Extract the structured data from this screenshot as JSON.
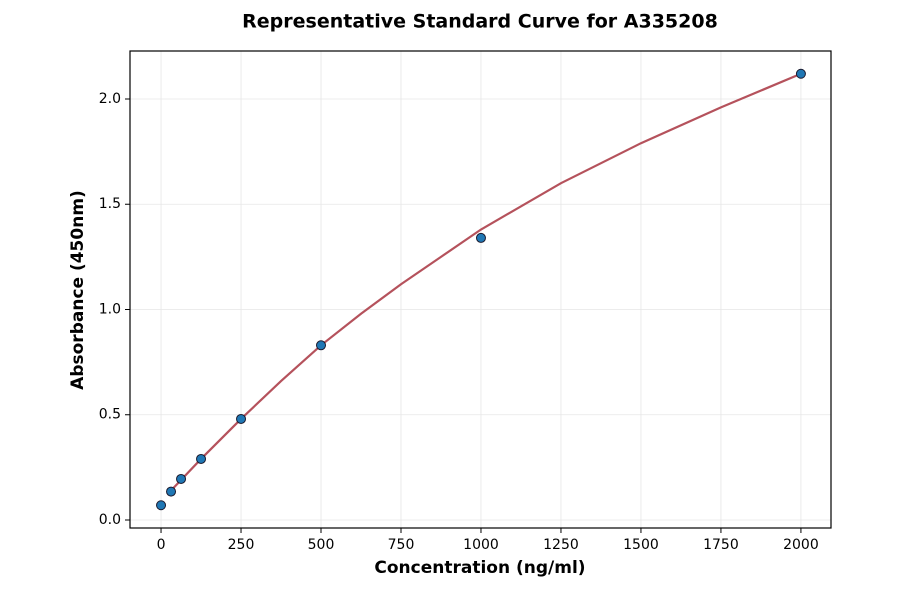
{
  "chart_data": {
    "type": "scatter",
    "title": "Representative Standard Curve for A335208",
    "x_label": "Concentration (ng/ml)",
    "y_label": "Absorbance (450nm)",
    "series": [
      {
        "type": "line",
        "color": "#b5525c",
        "x": [
          31.25,
          62.5,
          125,
          250,
          375,
          500,
          625,
          750,
          875,
          1000,
          1250,
          1500,
          1750,
          2000
        ],
        "values": [
          0.14,
          0.19,
          0.29,
          0.48,
          0.66,
          0.83,
          0.98,
          1.12,
          1.25,
          1.38,
          1.6,
          1.79,
          1.96,
          2.12
        ]
      },
      {
        "type": "scatter",
        "color": "#1f77b4",
        "x": [
          0,
          31.25,
          62.5,
          125,
          250,
          500,
          1000,
          2000
        ],
        "values": [
          0.07,
          0.135,
          0.195,
          0.29,
          0.48,
          0.83,
          1.34,
          2.12
        ]
      }
    ],
    "xlim": [
      -97,
      2094
    ],
    "ylim": [
      -0.038,
      2.228
    ],
    "xticks": [
      0,
      250,
      500,
      750,
      1000,
      1250,
      1500,
      1750,
      2000
    ],
    "yticks": [
      {
        "value": 0,
        "label": "0.0"
      },
      0.5,
      {
        "value": 1,
        "label": "1.0"
      },
      1.5,
      {
        "value": 2,
        "label": "2.0"
      }
    ],
    "grid": true
  }
}
